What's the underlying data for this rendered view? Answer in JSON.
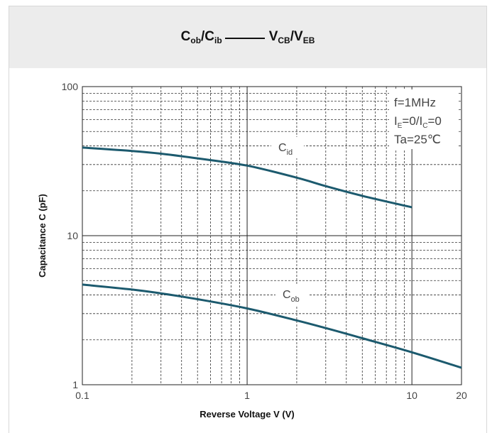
{
  "header": {
    "title_left_main": "C",
    "title_left_sub": "ob",
    "title_mid_main": "/C",
    "title_mid_sub": "ib",
    "title_right_main": "V",
    "title_right_sub": "CB",
    "title_right2_main": "/V",
    "title_right2_sub": "EB"
  },
  "chart_data": {
    "type": "line",
    "xscale": "log",
    "yscale": "log",
    "xlim": [
      0.1,
      20
    ],
    "ylim": [
      1,
      100
    ],
    "xlabel": "Reverse Voltage  V (V)",
    "ylabel": "Capacitance C (pF)",
    "x_ticks": [
      "0.1",
      "1",
      "10",
      "20"
    ],
    "y_ticks": [
      "1",
      "10",
      "100"
    ],
    "grid": true,
    "annotations": {
      "line1": "f=1MHz",
      "line2_a": "I",
      "line2_a_sub": "E",
      "line2_b": "=0/I",
      "line2_b_sub": "C",
      "line2_c": "=0",
      "line3": "Ta=25℃"
    },
    "series": [
      {
        "name_main": "C",
        "name_sub": "id",
        "color": "#1c5a6e",
        "x": [
          0.1,
          0.2,
          0.3,
          0.5,
          1,
          2,
          3,
          5,
          10
        ],
        "y": [
          39,
          37,
          35.5,
          33,
          29.5,
          24.5,
          21.5,
          18.5,
          15.5
        ]
      },
      {
        "name_main": "C",
        "name_sub": "ob",
        "color": "#1c5a6e",
        "x": [
          0.1,
          0.2,
          0.3,
          0.5,
          1,
          2,
          3,
          5,
          10,
          20
        ],
        "y": [
          4.7,
          4.35,
          4.1,
          3.75,
          3.25,
          2.7,
          2.4,
          2.05,
          1.65,
          1.3
        ]
      }
    ]
  }
}
